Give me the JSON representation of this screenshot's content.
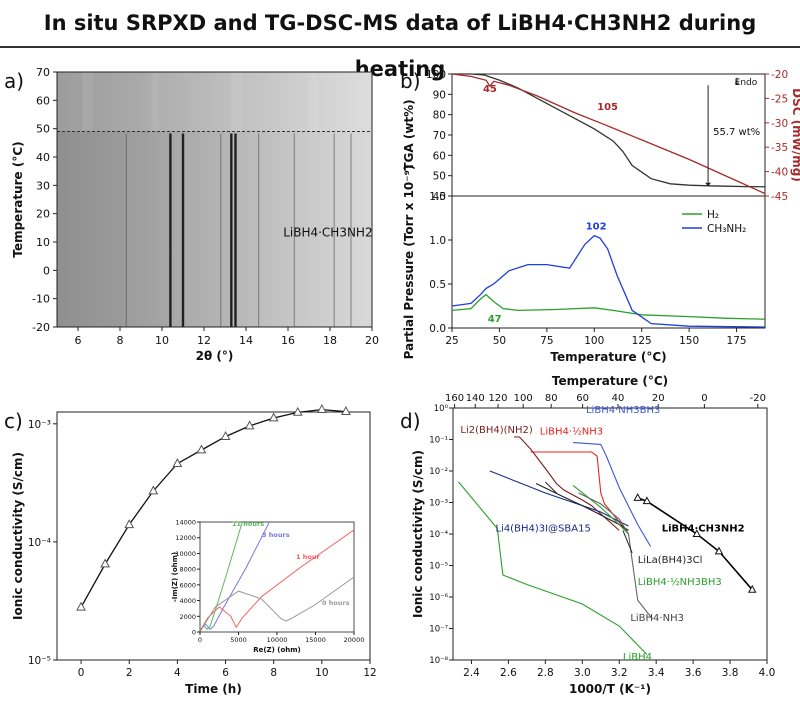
{
  "title": "In situ SRPXD and TG-DSC-MS data of LiBH4·CH3NH2 during heating",
  "chart_data": [
    {
      "panel": "a)",
      "type": "heatmap",
      "xlabel": "2θ (°)",
      "ylabel": "Temperature (°C)",
      "xlim": [
        5,
        20
      ],
      "ylim": [
        -20,
        70
      ],
      "xticks": [
        "6",
        "8",
        "10",
        "12",
        "14",
        "16",
        "18",
        "20"
      ],
      "yticks": [
        "-20",
        "-10",
        "0",
        "10",
        "20",
        "30",
        "40",
        "50",
        "60",
        "70"
      ],
      "transition_line_temperature": 49,
      "sample_label": "LiBH4·CH3NH2",
      "peaks_2theta": [
        8.3,
        10.4,
        11.0,
        12.8,
        13.3,
        13.5,
        14.6,
        16.3,
        18.2,
        19.0
      ]
    },
    {
      "panel": "b)",
      "type": "line",
      "upper": {
        "xlim": [
          25,
          190
        ],
        "ylabel_left": "TGA (wt%)",
        "ylabel_right": "DSC (mW/mg)",
        "yticks_left": [
          "100",
          "90",
          "80",
          "70",
          "60",
          "50",
          "40"
        ],
        "yticks_right": [
          "-20",
          "-25",
          "-30",
          "-35",
          "-40",
          "-45"
        ],
        "ylim_left": [
          40,
          100
        ],
        "ylim_right": [
          -45,
          -20
        ],
        "annotations": [
          "45",
          "105",
          "55.7 wt%",
          "Endo"
        ],
        "series": [
          {
            "name": "TGA",
            "color": "#333333",
            "x": [
              25,
              35,
              42,
              50,
              60,
              70,
              80,
              90,
              100,
              110,
              115,
              120,
              130,
              140,
              150,
              160,
              170,
              180,
              190
            ],
            "y": [
              100,
              100,
              99.5,
              97,
              93,
              88,
              83,
              78,
              73,
              67,
              62,
              55,
              48.5,
              46,
              45.3,
              45,
              44.8,
              44.6,
              44.5
            ]
          },
          {
            "name": "DSC",
            "color": "#a52a2a",
            "x": [
              25,
              35,
              43,
              45,
              47,
              55,
              70,
              90,
              105,
              125,
              150,
              170,
              190
            ],
            "y": [
              -20,
              -20.5,
              -21.3,
              -22.5,
              -21.5,
              -22.3,
              -24.5,
              -28,
              -30.3,
              -33.5,
              -37.5,
              -41,
              -44.5
            ]
          }
        ]
      },
      "lower": {
        "xlabel": "Temperature (°C)",
        "ylabel": "Partial Pressure (Torr x 10⁻⁹)",
        "xlim": [
          25,
          190
        ],
        "ylim": [
          0,
          1.5
        ],
        "xticks": [
          "25",
          "50",
          "75",
          "100",
          "125",
          "150",
          "175"
        ],
        "yticks": [
          "0.0",
          "0.5",
          "1.0",
          "1.5"
        ],
        "annotations": [
          "47",
          "102"
        ],
        "series": [
          {
            "name": "H₂",
            "color": "#2ca02c",
            "x": [
              25,
              35,
              40,
              43,
              47,
              52,
              60,
              80,
              100,
              110,
              125,
              150,
              170,
              190
            ],
            "y": [
              0.2,
              0.22,
              0.33,
              0.38,
              0.3,
              0.22,
              0.2,
              0.21,
              0.23,
              0.2,
              0.15,
              0.13,
              0.11,
              0.1
            ]
          },
          {
            "name": "CH₃NH₂",
            "color": "#1f3fd8",
            "x": [
              25,
              35,
              40,
              43,
              47,
              55,
              65,
              75,
              87,
              95,
              100,
              103,
              107,
              112,
              120,
              130,
              150,
              190
            ],
            "y": [
              0.25,
              0.28,
              0.38,
              0.45,
              0.5,
              0.65,
              0.72,
              0.72,
              0.68,
              0.95,
              1.05,
              1.02,
              0.9,
              0.6,
              0.2,
              0.05,
              0.02,
              0.01
            ]
          }
        ]
      }
    },
    {
      "panel": "c)",
      "type": "scatter",
      "xlabel": "Time (h)",
      "ylabel": "Ionic conductivity (S/cm)",
      "xlim": [
        -1,
        12
      ],
      "ylim_log10": [
        -5,
        -2.9
      ],
      "xticks": [
        "0",
        "2",
        "4",
        "6",
        "8",
        "10",
        "12"
      ],
      "yticks": [
        "10⁻³",
        "10⁻⁴",
        "10⁻⁵"
      ],
      "x": [
        0,
        1,
        2,
        3,
        4,
        5,
        6,
        7,
        8,
        9,
        10,
        11
      ],
      "y": [
        2.8e-05,
        6.5e-05,
        0.00014,
        0.00027,
        0.00046,
        0.0006,
        0.00078,
        0.00096,
        0.00112,
        0.00125,
        0.00132,
        0.00127
      ],
      "inset": {
        "xlabel": "Re(Z) (ohm)",
        "ylabel": "-Im(Z) (ohm)",
        "xlim": [
          0,
          20000
        ],
        "ylim": [
          0,
          14000
        ],
        "xticks": [
          "0",
          "5000",
          "10000",
          "15000",
          "20000"
        ],
        "yticks": [
          "0",
          "2000",
          "4000",
          "6000",
          "8000",
          "10000",
          "12000",
          "14000"
        ],
        "series": [
          {
            "name": "11 hours",
            "color": "#5cb85c",
            "x": [
              80,
              500,
              900,
              1300,
              2000,
              3500,
              5500
            ],
            "y": [
              300,
              800,
              350,
              700,
              2800,
              7500,
              14000
            ]
          },
          {
            "name": "3 hours",
            "color": "#7777e0",
            "x": [
              100,
              700,
              1300,
              1800,
              3000,
              6000,
              9000
            ],
            "y": [
              300,
              1000,
              350,
              800,
              3000,
              8200,
              14000
            ]
          },
          {
            "name": "1 hour",
            "color": "#f06060",
            "x": [
              50,
              1000,
              2500,
              4000,
              4700,
              5500,
              8000,
              13000,
              20000
            ],
            "y": [
              200,
              1800,
              3200,
              2000,
              600,
              1800,
              4500,
              8200,
              13000
            ]
          },
          {
            "name": "0 hours",
            "color": "#999999",
            "x": [
              50,
              2000,
              5000,
              8000,
              10500,
              11200,
              12000,
              15000,
              20000
            ],
            "y": [
              100,
              3200,
              5200,
              4200,
              1700,
              1400,
              1800,
              3500,
              7000
            ]
          }
        ]
      }
    },
    {
      "panel": "d)",
      "type": "line",
      "xlabel": "1000/T (K⁻¹)",
      "ylabel": "Ionic conductivity (S/cm)",
      "top_xlabel": "Temperature (°C)",
      "xlim": [
        2.3,
        4.0
      ],
      "ylim_log10": [
        -8,
        0
      ],
      "xticks": [
        "2.4",
        "2.6",
        "2.8",
        "3.0",
        "3.2",
        "3.4",
        "3.6",
        "3.8",
        "4.0"
      ],
      "top_ticks": [
        "160",
        "140",
        "120",
        "100",
        "80",
        "60",
        "40",
        "20",
        "0",
        "-20"
      ],
      "yticks": [
        "10⁰",
        "10⁻¹",
        "10⁻²",
        "10⁻³",
        "10⁻⁴",
        "10⁻⁵",
        "10⁻⁶",
        "10⁻⁷",
        "10⁻⁸"
      ],
      "series": [
        {
          "name": "LiBH4·CH3NH2",
          "color": "#000000",
          "x": [
            3.3,
            3.35,
            3.62,
            3.74,
            3.92
          ],
          "y": [
            0.0014,
            0.0011,
            0.0001,
            2.8e-05,
            1.7e-06
          ]
        },
        {
          "name": "Li2(BH4)(NH2)",
          "color": "#7b1f1f",
          "x": [
            2.63,
            2.66,
            2.72,
            2.8,
            2.86,
            2.9,
            3.0,
            3.05,
            3.2
          ],
          "y": [
            0.12,
            0.12,
            0.05,
            0.012,
            0.004,
            0.0025,
            0.0012,
            0.0008,
            0.00013
          ]
        },
        {
          "name": "LiBH4·½NH3",
          "color": "#e8221c",
          "x": [
            2.72,
            3.05,
            3.08,
            3.1,
            3.12,
            3.17,
            3.25
          ],
          "y": [
            0.04,
            0.04,
            0.03,
            0.002,
            0.0009,
            0.0004,
            0.0001
          ]
        },
        {
          "name": "LiBH4·NH3BH3",
          "color": "#4055d8",
          "x": [
            2.95,
            3.1,
            3.13,
            3.2,
            3.3,
            3.37
          ],
          "y": [
            0.08,
            0.07,
            0.03,
            0.003,
            0.0002,
            4e-05
          ]
        },
        {
          "name": "Li4(BH4)3I@SBA15",
          "color": "#1a2a8a",
          "x": [
            2.5,
            2.8,
            3.0,
            3.1,
            3.2,
            3.25
          ],
          "y": [
            0.01,
            0.002,
            0.0008,
            0.0005,
            0.00025,
            0.00018
          ]
        },
        {
          "name": "LiLa(BH4)3Cl",
          "color": "#222222",
          "x": [
            2.75,
            2.9,
            3.0,
            3.1,
            3.2,
            3.25
          ],
          "y": [
            0.004,
            0.0015,
            0.0008,
            0.0004,
            0.0002,
            0.00013
          ]
        },
        {
          "name": "LiBH4·½NH3BH3",
          "color": "#2aa02a",
          "x": [
            2.95,
            3.1,
            3.2,
            3.25
          ],
          "y": [
            0.0035,
            0.0007,
            0.0002,
            0.0001
          ]
        },
        {
          "name": "LiBH4·NH3",
          "color": "#666666",
          "x": [
            2.98,
            3.1,
            3.2,
            3.25,
            3.3,
            3.38
          ],
          "y": [
            0.002,
            0.0009,
            0.0003,
            0.0001,
            8e-07,
            2e-07
          ]
        },
        {
          "name": "LiBH4",
          "color": "#2aa02a",
          "x": [
            2.33,
            2.54,
            2.57,
            2.7,
            3.0,
            3.2,
            3.35
          ],
          "y": [
            0.0045,
            0.00015,
            5e-06,
            2.5e-06,
            6e-07,
            1.2e-07,
            1.5e-08
          ]
        }
      ]
    }
  ]
}
